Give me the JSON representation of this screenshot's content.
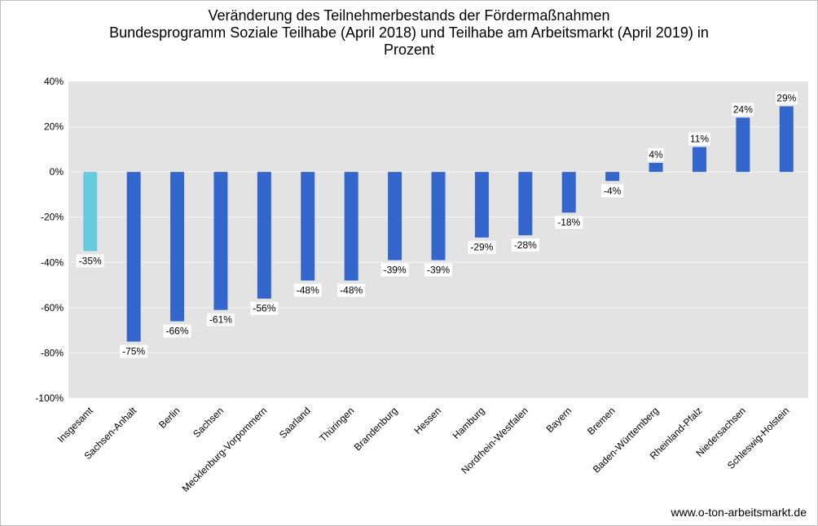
{
  "chart_data": {
    "type": "bar",
    "title_lines": [
      "Veränderung des Teilnehmerbestands der Fördermaßnahmen",
      "Bundesprogramm Soziale Teilhabe (April 2018) und Teilhabe am Arbeitsmarkt (April 2019) in",
      "Prozent"
    ],
    "categories": [
      "Insgesamt",
      "Sachsen-Anhalt",
      "Berlin",
      "Sachsen",
      "Mecklenburg-Vorpommern",
      "Saarland",
      "Thüringen",
      "Brandenburg",
      "Hessen",
      "Hamburg",
      "Nordrhein-Westfalen",
      "Bayern",
      "Bremen",
      "Baden-Württemberg",
      "Rheinland-Pfalz",
      "Niedersachsen",
      "Schleswig-Holstein"
    ],
    "values": [
      -35,
      -75,
      -66,
      -61,
      -56,
      -48,
      -48,
      -39,
      -39,
      -29,
      -28,
      -18,
      -4,
      4,
      11,
      24,
      29
    ],
    "data_labels": [
      "-35%",
      "-75%",
      "-66%",
      "-61%",
      "-56%",
      "-48%",
      "-48%",
      "-39%",
      "-39%",
      "-29%",
      "-28%",
      "-18%",
      "-4%",
      "4%",
      "11%",
      "24%",
      "29%"
    ],
    "ylim": [
      -100,
      40
    ],
    "yticks": [
      40,
      20,
      0,
      -20,
      -40,
      -60,
      -80,
      -100
    ],
    "ytick_labels": [
      "40%",
      "20%",
      "0%",
      "-20%",
      "-40%",
      "-60%",
      "-80%",
      "-100%"
    ],
    "grid": true,
    "colors": {
      "highlight": "#66ccdd",
      "bar": "#3366cc",
      "plot_bg": "#e3e3e3",
      "grid": "#f5f5f5"
    },
    "highlight_index": 0
  },
  "source": "www.o-ton-arbeitsmarkt.de"
}
